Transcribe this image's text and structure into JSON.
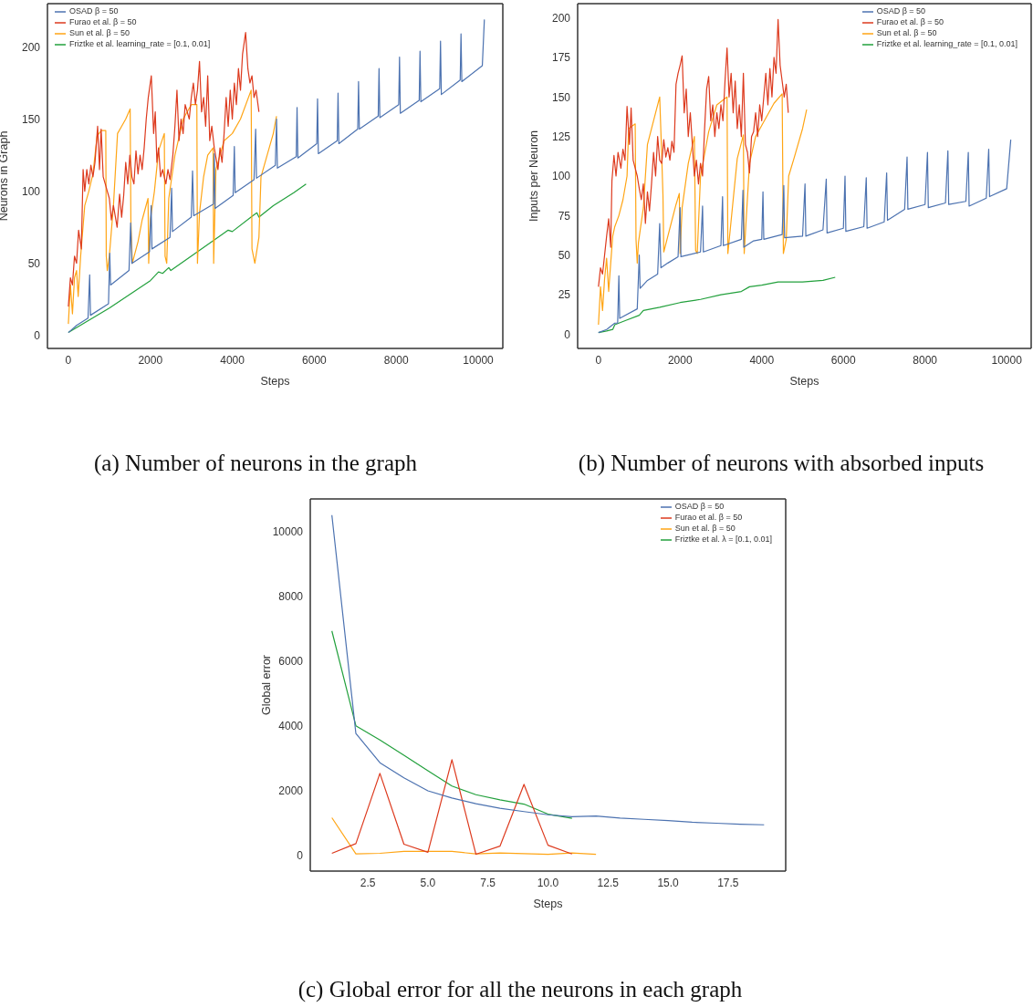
{
  "chart_data": [
    {
      "type": "line",
      "xlabel": "Steps",
      "ylabel": "Neurons in Graph",
      "xlim": [
        -510,
        10600
      ],
      "ylim": [
        -9,
        230
      ],
      "xticks": [
        0,
        2000,
        4000,
        6000,
        8000,
        10000
      ],
      "yticks": [
        0,
        50,
        100,
        150,
        200
      ],
      "legend": "top left",
      "annotations": [
        "(a) Number of neurons in the graph"
      ],
      "series": [
        {
          "name": "OSAD β = 50",
          "color": "#4c72b0",
          "x": [
            0,
            200,
            480,
            520,
            540,
            980,
            1010,
            1030,
            1480,
            1520,
            1550,
            1980,
            2020,
            2040,
            2480,
            2520,
            2540,
            3000,
            3030,
            3060,
            3540,
            3560,
            3580,
            4020,
            4050,
            4070,
            4530,
            4570,
            4590,
            5050,
            5080,
            5100,
            5560,
            5580,
            5600,
            6060,
            6080,
            6100,
            6560,
            6580,
            6600,
            7060,
            7080,
            7100,
            7560,
            7580,
            7600,
            8060,
            8080,
            8100,
            8560,
            8580,
            8600,
            9060,
            9080,
            9100,
            9560,
            9580,
            9600,
            10100,
            10150
          ],
          "values": [
            2,
            7,
            12,
            42,
            14,
            22,
            57,
            35,
            45,
            78,
            50,
            58,
            90,
            60,
            68,
            102,
            72,
            82,
            114,
            83,
            91,
            126,
            88,
            97,
            131,
            99,
            108,
            143,
            109,
            118,
            150,
            116,
            124,
            158,
            123,
            133,
            164,
            126,
            135,
            168,
            133,
            143,
            176,
            143,
            152,
            185,
            151,
            160,
            193,
            154,
            163,
            197,
            162,
            171,
            204,
            167,
            177,
            209,
            176,
            187,
            219
          ]
        },
        {
          "name": "Furao et al. β = 50",
          "color": "#dd3a1e",
          "x": [
            0,
            50,
            100,
            150,
            200,
            250,
            317,
            360,
            400,
            450,
            500,
            550,
            600,
            650,
            714,
            760,
            800,
            850,
            900,
            950,
            1000,
            1050,
            1100,
            1190,
            1250,
            1300,
            1350,
            1400,
            1450,
            1500,
            1550,
            1600,
            1650,
            1700,
            1750,
            1800,
            1850,
            1900,
            1950,
            2024,
            2080,
            2120,
            2160,
            2200,
            2250,
            2300,
            2380,
            2430,
            2480,
            2550,
            2600,
            2650,
            2700,
            2750,
            2800,
            2850,
            2900,
            2950,
            3000,
            3050,
            3100,
            3150,
            3200,
            3250,
            3300,
            3350,
            3400,
            3450,
            3500,
            3560,
            3650,
            3700,
            3750,
            3800,
            3850,
            3900,
            3950,
            4000,
            4050,
            4100,
            4150,
            4200,
            4250,
            4325,
            4380,
            4430,
            4480,
            4530,
            4580,
            4650
          ],
          "values": [
            20,
            40,
            35,
            55,
            50,
            73,
            60,
            115,
            100,
            115,
            105,
            118,
            110,
            120,
            145,
            115,
            143,
            110,
            105,
            100,
            95,
            80,
            90,
            75,
            98,
            82,
            97,
            120,
            105,
            125,
            110,
            105,
            128,
            112,
            125,
            115,
            130,
            150,
            165,
            180,
            140,
            155,
            120,
            130,
            110,
            115,
            105,
            115,
            108,
            125,
            145,
            170,
            135,
            150,
            140,
            160,
            155,
            150,
            165,
            175,
            160,
            170,
            190,
            155,
            165,
            145,
            180,
            135,
            145,
            130,
            115,
            130,
            120,
            140,
            165,
            145,
            170,
            150,
            175,
            160,
            185,
            170,
            195,
            210,
            185,
            175,
            180,
            165,
            170,
            155
          ]
        },
        {
          "name": "Sun et al. β = 50",
          "color": "#ffa515",
          "x": [
            0,
            50,
            100,
            150,
            200,
            240,
            300,
            400,
            500,
            600,
            700,
            800,
            913,
            925,
            950,
            1000,
            1100,
            1200,
            1300,
            1400,
            1508,
            1525,
            1560,
            1700,
            1800,
            1944,
            1960,
            2000,
            2100,
            2200,
            2341,
            2360,
            2400,
            2450,
            2600,
            2800,
            3000,
            3135,
            3150,
            3200,
            3300,
            3400,
            3532,
            3545,
            3600,
            3700,
            3800,
            4000,
            4200,
            4460,
            4480,
            4550,
            4650,
            4700,
            4850,
            5000,
            5079
          ],
          "values": [
            8,
            35,
            15,
            40,
            45,
            27,
            55,
            90,
            100,
            112,
            138,
            142,
            142,
            55,
            45,
            55,
            90,
            140,
            145,
            150,
            157,
            80,
            50,
            65,
            80,
            95,
            50,
            80,
            100,
            128,
            140,
            55,
            50,
            95,
            125,
            150,
            160,
            160,
            50,
            85,
            110,
            125,
            130,
            50,
            115,
            125,
            135,
            140,
            150,
            170,
            60,
            50,
            68,
            110,
            125,
            140,
            152
          ]
        },
        {
          "name": "Friztke et al. learning_rate = [0.1, 0.01]",
          "color": "#22a03c",
          "x": [
            0,
            1000,
            2000,
            2200,
            2300,
            2450,
            2500,
            3000,
            3900,
            4000,
            4500,
            4600,
            4650,
            5000,
            5500,
            5800
          ],
          "values": [
            2,
            19,
            38,
            44,
            43,
            47,
            45,
            55,
            73,
            72,
            83,
            85,
            82,
            90,
            99,
            105
          ]
        }
      ]
    },
    {
      "type": "line",
      "xlabel": "Steps",
      "ylabel": "Inputs per Neuron",
      "xlim": [
        -510,
        10600
      ],
      "ylim": [
        -9,
        209
      ],
      "xticks": [
        0,
        2000,
        4000,
        6000,
        8000,
        10000
      ],
      "yticks": [
        0,
        25,
        50,
        75,
        100,
        125,
        150,
        175,
        200
      ],
      "legend": "top right",
      "annotations": [
        "(b) Number of neurons with absorbed inputs"
      ],
      "series": [
        {
          "name": "OSAD β = 50",
          "color": "#4c72b0",
          "x": [
            0,
            200,
            400,
            470,
            500,
            520,
            950,
            1000,
            1020,
            1200,
            1450,
            1500,
            1530,
            1700,
            1950,
            2000,
            2020,
            2500,
            2550,
            2570,
            3000,
            3040,
            3060,
            3500,
            3540,
            3560,
            3800,
            4000,
            4030,
            4050,
            4500,
            4540,
            4560,
            5000,
            5060,
            5080,
            5500,
            5580,
            5600,
            6000,
            6040,
            6060,
            6500,
            6560,
            6580,
            7000,
            7060,
            7080,
            7500,
            7560,
            7580,
            8000,
            8060,
            8080,
            8500,
            8560,
            8580,
            9000,
            9060,
            9080,
            9500,
            9560,
            9580,
            10000,
            10100
          ],
          "values": [
            1,
            3,
            7,
            7,
            37,
            10,
            16,
            50,
            29,
            34,
            38,
            70,
            42,
            45,
            49,
            80,
            49,
            52,
            81,
            52,
            56,
            87,
            56,
            60,
            91,
            55,
            59,
            60,
            90,
            60,
            63,
            94,
            61,
            62,
            95,
            62,
            66,
            98,
            64,
            67,
            100,
            65,
            68,
            99,
            67,
            71,
            102,
            72,
            79,
            112,
            79,
            82,
            115,
            80,
            83,
            116,
            82,
            84,
            115,
            81,
            86,
            117,
            87,
            92,
            123
          ]
        },
        {
          "name": "Furao et al. β = 50",
          "color": "#dd3a1e",
          "x": [
            0,
            50,
            100,
            150,
            200,
            250,
            300,
            330,
            380,
            430,
            480,
            550,
            600,
            650,
            700,
            760,
            800,
            850,
            900,
            950,
            1000,
            1050,
            1100,
            1150,
            1200,
            1250,
            1300,
            1350,
            1400,
            1450,
            1500,
            1550,
            1600,
            1650,
            1700,
            1750,
            1800,
            1850,
            1900,
            1950,
            2000,
            2050,
            2100,
            2150,
            2200,
            2250,
            2300,
            2350,
            2400,
            2450,
            2500,
            2550,
            2600,
            2650,
            2700,
            2750,
            2800,
            2850,
            2900,
            2950,
            3000,
            3050,
            3100,
            3150,
            3200,
            3250,
            3300,
            3350,
            3400,
            3450,
            3500,
            3550,
            3600,
            3650,
            3700,
            3750,
            3800,
            3850,
            3900,
            3950,
            4000,
            4050,
            4100,
            4150,
            4200,
            4250,
            4300,
            4350,
            4400,
            4450,
            4500,
            4550,
            4600,
            4650
          ],
          "values": [
            30,
            42,
            38,
            50,
            62,
            73,
            55,
            97,
            113,
            100,
            115,
            105,
            117,
            110,
            144,
            120,
            143,
            110,
            105,
            100,
            92,
            85,
            95,
            70,
            90,
            78,
            95,
            115,
            100,
            125,
            110,
            108,
            123,
            112,
            118,
            110,
            122,
            115,
            158,
            165,
            170,
            176,
            140,
            155,
            125,
            140,
            120,
            100,
            110,
            95,
            108,
            100,
            130,
            155,
            163,
            135,
            145,
            125,
            140,
            130,
            145,
            135,
            160,
            181,
            150,
            165,
            140,
            160,
            130,
            145,
            125,
            165,
            120,
            115,
            102,
            125,
            128,
            140,
            125,
            145,
            135,
            150,
            165,
            145,
            168,
            150,
            175,
            165,
            199,
            170,
            160,
            150,
            158,
            140
          ]
        },
        {
          "name": "Sun et al. β = 50",
          "color": "#ffa515",
          "x": [
            0,
            50,
            100,
            150,
            200,
            250,
            300,
            350,
            400,
            500,
            600,
            700,
            740,
            900,
            920,
            950,
            980,
            1100,
            1200,
            1400,
            1500,
            1540,
            1580,
            1600,
            1700,
            1900,
            1980,
            2000,
            2050,
            2200,
            2350,
            2380,
            2420,
            2500,
            2700,
            2900,
            3150,
            3170,
            3300,
            3400,
            3550,
            3570,
            3700,
            3850,
            4000,
            4300,
            4500,
            4530,
            4600,
            4660,
            4800,
            5000,
            5100
          ],
          "values": [
            6,
            30,
            15,
            35,
            48,
            27,
            45,
            62,
            68,
            75,
            85,
            100,
            130,
            133,
            60,
            45,
            58,
            80,
            120,
            140,
            150,
            120,
            88,
            52,
            62,
            82,
            89,
            51,
            80,
            108,
            125,
            53,
            51,
            100,
            128,
            145,
            150,
            51,
            85,
            111,
            126,
            51,
            108,
            125,
            132,
            146,
            152,
            51,
            60,
            100,
            112,
            130,
            142
          ]
        },
        {
          "name": "Friztke et al. learning_rate = [0.1, 0.01]",
          "color": "#22a03c",
          "x": [
            0,
            200,
            350,
            400,
            700,
            1000,
            1100,
            1500,
            2000,
            2500,
            3000,
            3500,
            3700,
            4000,
            4400,
            5000,
            5500,
            5800
          ],
          "values": [
            1,
            2,
            3,
            6,
            9,
            12,
            15,
            17,
            20,
            22,
            25,
            27,
            30,
            31,
            33,
            33,
            34,
            36
          ]
        }
      ]
    },
    {
      "type": "line",
      "xlabel": "Steps",
      "ylabel": "Global error",
      "xlim": [
        0.1,
        19.9
      ],
      "ylim": [
        -500,
        11000
      ],
      "xticks": [
        {
          "value": 2.5,
          "label": "2.5"
        },
        {
          "value": 5,
          "label": "5.0"
        },
        {
          "value": 7.5,
          "label": "7.5"
        },
        {
          "value": 10,
          "label": "10.0"
        },
        {
          "value": 12.5,
          "label": "12.5"
        },
        {
          "value": 15,
          "label": "15.0"
        },
        {
          "value": 17.5,
          "label": "17.5"
        }
      ],
      "yticks": [
        0,
        2000,
        4000,
        6000,
        8000,
        10000
      ],
      "legend": "top right",
      "annotations": [
        "(c) Global error for all the neurons in each graph"
      ],
      "series": [
        {
          "name": "OSAD β = 50",
          "color": "#4c72b0",
          "x": [
            1,
            2,
            3,
            4,
            5,
            6,
            7,
            8,
            9,
            10,
            11,
            12,
            13,
            14,
            15,
            16,
            17,
            18,
            19
          ],
          "values": [
            10500,
            3750,
            2850,
            2380,
            1980,
            1760,
            1580,
            1440,
            1340,
            1240,
            1180,
            1200,
            1140,
            1100,
            1060,
            1010,
            980,
            950,
            930
          ]
        },
        {
          "name": "Furao et al. β = 50",
          "color": "#dd3a1e",
          "x": [
            1,
            2,
            3,
            4,
            5,
            6,
            7,
            8,
            9,
            10,
            11
          ],
          "values": [
            50,
            350,
            2520,
            330,
            80,
            2940,
            20,
            270,
            2180,
            300,
            30
          ]
        },
        {
          "name": "Sun et al. β = 50",
          "color": "#ffa515",
          "x": [
            1,
            2,
            3,
            4,
            5,
            6,
            7,
            8,
            9,
            10,
            11,
            12
          ],
          "values": [
            1150,
            30,
            50,
            110,
            110,
            110,
            30,
            60,
            40,
            20,
            60,
            20
          ]
        },
        {
          "name": "Friztke et al. λ = [0.1, 0.01]",
          "color": "#22a03c",
          "x": [
            1,
            2,
            3,
            4,
            5,
            6,
            7,
            8,
            9,
            10,
            11
          ],
          "values": [
            6920,
            3990,
            3550,
            3080,
            2600,
            2130,
            1860,
            1700,
            1570,
            1260,
            1130
          ]
        }
      ]
    }
  ]
}
